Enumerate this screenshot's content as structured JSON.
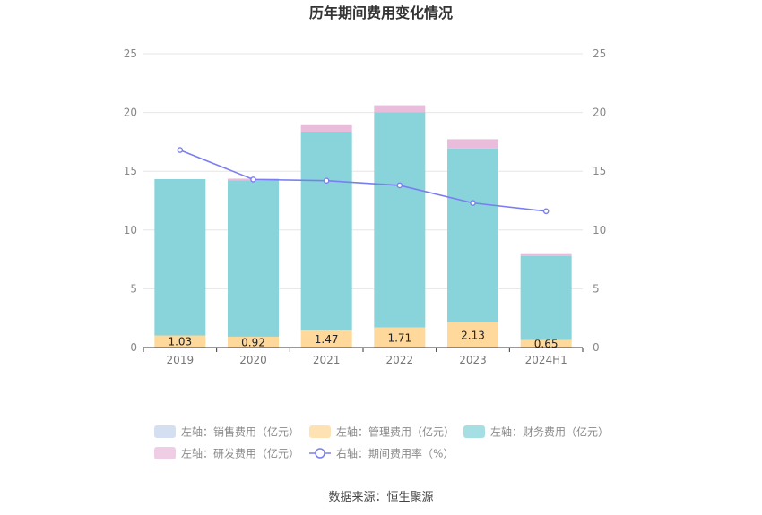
{
  "chart_data": {
    "type": "bar",
    "title": "历年期间费用变化情况",
    "categories": [
      "2019",
      "2020",
      "2021",
      "2022",
      "2023",
      "2024H1"
    ],
    "left_axis": {
      "min": 0,
      "max": 25,
      "ticks": [
        "0",
        "5",
        "10",
        "15",
        "20",
        "25"
      ]
    },
    "right_axis": {
      "min": 0,
      "max": 25,
      "ticks": [
        "0",
        "5",
        "10",
        "15",
        "20",
        "25"
      ]
    },
    "grid": true,
    "stacked": true,
    "series": [
      {
        "name": "左轴：销售费用（亿元）",
        "type": "bar",
        "axis": "left",
        "color": "#c6d6ee",
        "values": [
          0,
          0,
          0,
          0,
          0,
          0
        ]
      },
      {
        "name": "左轴：管理费用（亿元）",
        "type": "bar",
        "axis": "left",
        "color": "#ffd89b",
        "values": [
          1.03,
          0.92,
          1.47,
          1.71,
          2.13,
          0.65
        ],
        "labels": [
          "1.03",
          "0.92",
          "1.47",
          "1.71",
          "2.13",
          "0.65"
        ]
      },
      {
        "name": "左轴：财务费用（亿元）",
        "type": "bar",
        "axis": "left",
        "color": "#88d4da",
        "values": [
          13.3,
          13.3,
          16.9,
          18.3,
          14.8,
          7.15
        ]
      },
      {
        "name": "左轴：研发费用（亿元）",
        "type": "bar",
        "axis": "left",
        "color": "#e9bcdc",
        "values": [
          0,
          0.15,
          0.55,
          0.6,
          0.8,
          0.15
        ]
      },
      {
        "name": "右轴：期间费用率（%）",
        "type": "line",
        "axis": "right",
        "color": "#7a7ef0",
        "values": [
          16.8,
          14.3,
          14.2,
          13.8,
          12.3,
          11.6
        ]
      }
    ],
    "legend_position": "bottom"
  },
  "source": "数据来源：恒生聚源"
}
